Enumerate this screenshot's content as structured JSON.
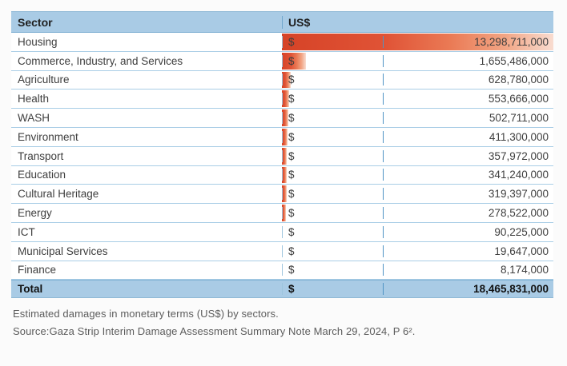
{
  "colors": {
    "header_blue": "#a9cbe5",
    "row_line_blue": "#a9cde6",
    "divider_blue": "#4f94c4",
    "bar_red": "#d64327",
    "bar_fade_pink": "#f8dcd0",
    "text_dark": "#3e3e3e",
    "caption_gray": "#5c5c5c"
  },
  "table": {
    "headers": {
      "sector": "Sector",
      "currency": "US$",
      "value": ""
    },
    "rows": [
      {
        "sector": "Housing",
        "currency_symbol": "$",
        "value": "13,298,711,000",
        "bar_pct": 100
      },
      {
        "sector": "Commerce, Industry, and Services",
        "currency_symbol": "$",
        "value": "1,655,486,000",
        "bar_pct": 8.9
      },
      {
        "sector": "Agriculture",
        "currency_symbol": "$",
        "value": "628,780,000",
        "bar_pct": 3.1
      },
      {
        "sector": "Health",
        "currency_symbol": "$",
        "value": "553,666,000",
        "bar_pct": 2.7
      },
      {
        "sector": "WASH",
        "currency_symbol": "$",
        "value": "502,711,000",
        "bar_pct": 2.4
      },
      {
        "sector": "Environment",
        "currency_symbol": "$",
        "value": "411,300,000",
        "bar_pct": 2.1
      },
      {
        "sector": "Transport",
        "currency_symbol": "$",
        "value": "357,972,000",
        "bar_pct": 1.9
      },
      {
        "sector": "Education",
        "currency_symbol": "$",
        "value": "341,240,000",
        "bar_pct": 1.85
      },
      {
        "sector": "Cultural Heritage",
        "currency_symbol": "$",
        "value": "319,397,000",
        "bar_pct": 1.75
      },
      {
        "sector": "Energy",
        "currency_symbol": "$",
        "value": "278,522,000",
        "bar_pct": 1.6
      },
      {
        "sector": "ICT",
        "currency_symbol": "$",
        "value": "90,225,000",
        "bar_pct": 0
      },
      {
        "sector": "Municipal Services",
        "currency_symbol": "$",
        "value": "19,647,000",
        "bar_pct": 0
      },
      {
        "sector": "Finance",
        "currency_symbol": "$",
        "value": "8,174,000",
        "bar_pct": 0
      }
    ],
    "total": {
      "sector": "Total",
      "currency_symbol": "$",
      "value": "18,465,831,000"
    }
  },
  "caption": {
    "line1": "Estimated damages in monetary terms (US$) by sectors.",
    "line2": "Source:Gaza Strip Interim Damage Assessment Summary Note March 29, 2024, P 6²."
  },
  "chart_data": {
    "type": "bar",
    "title": "Estimated damages in monetary terms (US$) by sectors",
    "categories": [
      "Housing",
      "Commerce, Industry, and Services",
      "Agriculture",
      "Health",
      "WASH",
      "Environment",
      "Transport",
      "Education",
      "Cultural Heritage",
      "Energy",
      "ICT",
      "Municipal Services",
      "Finance"
    ],
    "values": [
      13298711000,
      1655486000,
      628780000,
      553666000,
      502711000,
      411300000,
      357972000,
      341240000,
      319397000,
      278522000,
      90225000,
      19647000,
      8174000
    ],
    "total": 18465831000,
    "xlabel": "Sector",
    "ylabel": "US$",
    "legend": false,
    "grid": false,
    "bar_color": "#d64327"
  }
}
